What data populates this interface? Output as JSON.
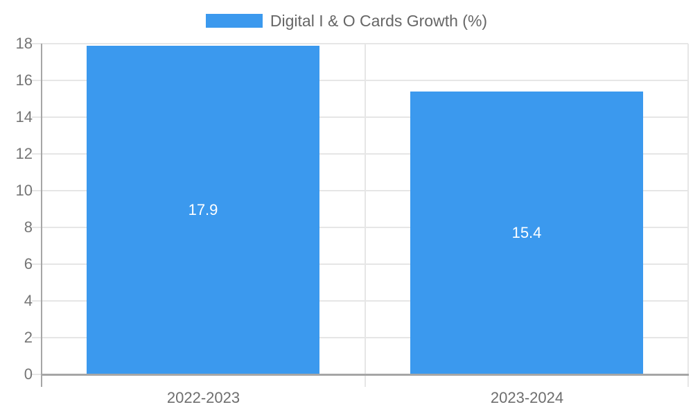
{
  "legend": {
    "label": "Digital I & O Cards Growth (%)"
  },
  "chart_data": {
    "type": "bar",
    "title": "",
    "categories": [
      "2022-2023",
      "2023-2024"
    ],
    "values": [
      17.9,
      15.4
    ],
    "series_name": "Digital I & O Cards Growth (%)",
    "value_labels": [
      "17.9",
      "15.4"
    ],
    "xlabel": "",
    "ylabel": "",
    "ylim": [
      0,
      18
    ],
    "ytick_step": 2,
    "yticks": [
      0,
      2,
      4,
      6,
      8,
      10,
      12,
      14,
      16,
      18
    ],
    "grid": true,
    "legend_position": "top",
    "bar_color": "#3B99EE",
    "value_label_color": "#ffffff"
  },
  "colors": {
    "bar": "#3B99EE",
    "grid": "#e6e6e6",
    "axis": "#a6a6a6",
    "tick_label": "#757575",
    "category_label": "#6e6e6e",
    "legend_text": "#666666",
    "background": "#ffffff"
  }
}
